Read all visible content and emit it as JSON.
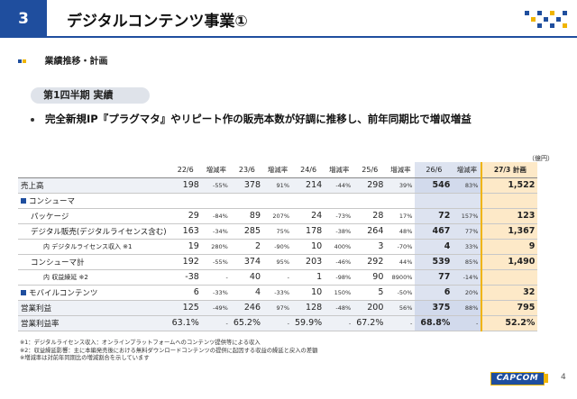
{
  "header": {
    "section_number": "3",
    "title": "デジタルコンテンツ事業①"
  },
  "subhead": "業績推移・計画",
  "pill": "第1四半期 実績",
  "headline": "完全新規IP『プラグマタ』やリピート作の販売本数が好調に推移し、前年同期比で増収増益",
  "unit": "（億円）",
  "table": {
    "years": [
      "22/6",
      "23/6",
      "24/6",
      "25/6",
      "26/6"
    ],
    "pct_label": "増減率",
    "plan_label": "27/3 計画",
    "rows": [
      {
        "label": "売上高",
        "v": [
          "198",
          "378",
          "214",
          "298",
          "546"
        ],
        "p": [
          "-55%",
          "91%",
          "-44%",
          "39%",
          "83%"
        ],
        "plan": "1,522",
        "style": "hl"
      },
      {
        "label": "コンシューマ",
        "section": true
      },
      {
        "label": "パッケージ",
        "indent": 1,
        "v": [
          "29",
          "89",
          "24",
          "28",
          "72"
        ],
        "p": [
          "-84%",
          "207%",
          "-73%",
          "17%",
          "157%"
        ],
        "plan": "123"
      },
      {
        "label": "デジタル販売(デジタルライセンス含む)",
        "indent": 1,
        "v": [
          "163",
          "285",
          "178",
          "264",
          "467"
        ],
        "p": [
          "-34%",
          "75%",
          "-38%",
          "48%",
          "77%"
        ],
        "plan": "1,367"
      },
      {
        "label": "内 デジタルライセンス収入 ※1",
        "indent": 2,
        "v": [
          "19",
          "2",
          "10",
          "3",
          "4"
        ],
        "p": [
          "280%",
          "-90%",
          "400%",
          "-70%",
          "33%"
        ],
        "plan": "9"
      },
      {
        "label": "コンシューマ計",
        "indent": 1,
        "v": [
          "192",
          "374",
          "203",
          "292",
          "539"
        ],
        "p": [
          "-55%",
          "95%",
          "-46%",
          "44%",
          "85%"
        ],
        "plan": "1,490"
      },
      {
        "label": "内 収益繰延 ※2",
        "indent": 2,
        "v": [
          "-38",
          "40",
          "1",
          "90",
          "77"
        ],
        "p": [
          "-",
          "-",
          "-98%",
          "8900%",
          "-14%"
        ],
        "plan": ""
      },
      {
        "label": "モバイルコンテンツ",
        "section": true,
        "v": [
          "6",
          "4",
          "10",
          "5",
          "6"
        ],
        "p": [
          "-33%",
          "-33%",
          "150%",
          "-50%",
          "20%"
        ],
        "plan": "32"
      },
      {
        "label": "営業利益",
        "v": [
          "125",
          "246",
          "128",
          "200",
          "375"
        ],
        "p": [
          "-49%",
          "97%",
          "-48%",
          "56%",
          "88%"
        ],
        "plan": "795",
        "style": "hl"
      },
      {
        "label": "営業利益率",
        "v": [
          "63.1%",
          "65.2%",
          "59.9%",
          "67.2%",
          "68.8%"
        ],
        "p": [
          "-",
          "-",
          "-",
          "-",
          "-"
        ],
        "plan": "52.2%",
        "style": "hl"
      }
    ]
  },
  "notes": [
    "※1：デジタルライセンス収入：オンラインプラットフォームへのコンテンツ提供等による収入",
    "※2：収益繰延影響：主に本編発売後における無料ダウンロードコンテンツの提供に起因する収益の繰延と戻入の差額",
    "※増減率は対前年同期比の増減割合を示しています"
  ],
  "logo": "CAPCOM",
  "page_number": "4"
}
